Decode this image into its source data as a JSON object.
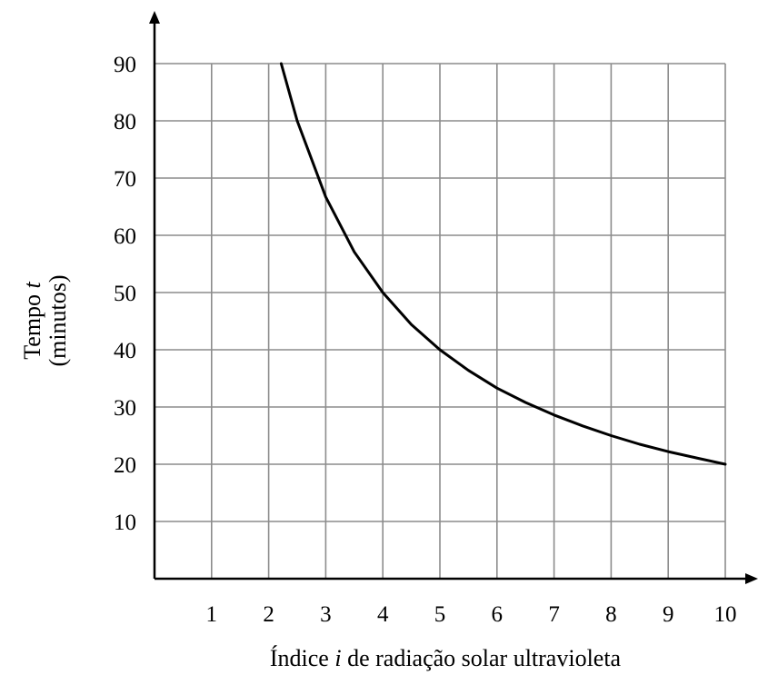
{
  "chart_data": {
    "type": "line",
    "title": "",
    "xlabel": {
      "before": "Índice ",
      "var": "i",
      "after": " de radiação solar ultravioleta"
    },
    "ylabel": {
      "line1_before": "Tempo ",
      "line1_var": "t",
      "line2": "(minutos)"
    },
    "xlim": [
      0,
      10
    ],
    "ylim": [
      0,
      90
    ],
    "grid": true,
    "x_ticks": [
      1,
      2,
      3,
      4,
      5,
      6,
      7,
      8,
      9,
      10
    ],
    "y_ticks": [
      10,
      20,
      30,
      40,
      50,
      60,
      70,
      80,
      90
    ],
    "series": [
      {
        "x": [
          2.22,
          2.5,
          3,
          3.5,
          4,
          4.5,
          5,
          5.5,
          6,
          6.5,
          7,
          7.5,
          8,
          8.5,
          9,
          9.5,
          10
        ],
        "values": [
          90,
          80,
          66.7,
          57.1,
          50,
          44.4,
          40,
          36.4,
          33.3,
          30.8,
          28.6,
          26.7,
          25,
          23.5,
          22.2,
          21.1,
          20
        ]
      }
    ]
  }
}
